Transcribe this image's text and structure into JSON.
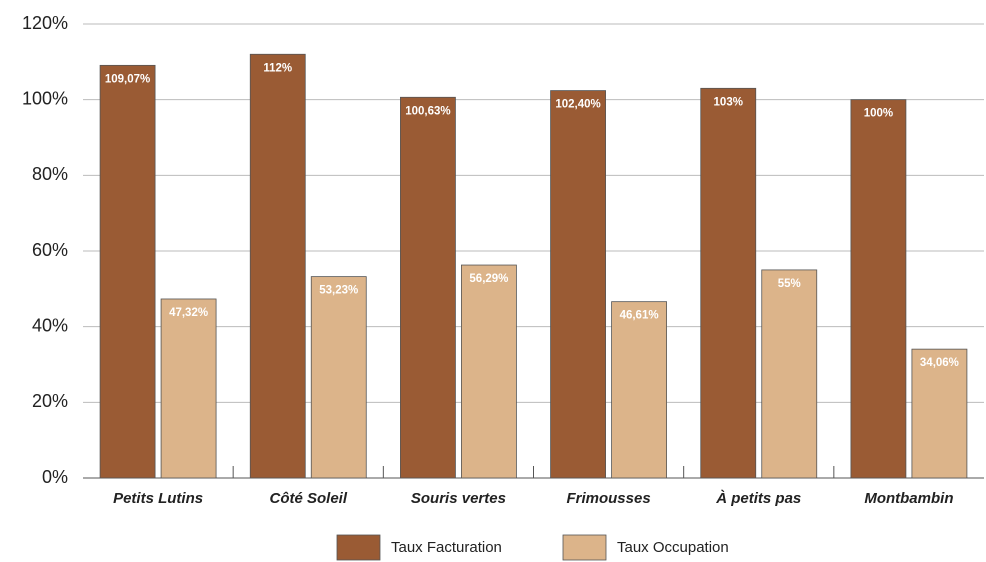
{
  "chart_data": {
    "type": "bar",
    "categories": [
      "Petits Lutins",
      "Côté Soleil",
      "Souris vertes",
      "Frimousses",
      "À petits pas",
      "Montbambin"
    ],
    "series": [
      {
        "name": "Taux Facturation",
        "color": "#9a5b34",
        "values": [
          109.07,
          112,
          100.63,
          102.4,
          103,
          100
        ],
        "value_labels": [
          "109,07%",
          "112%",
          "100,63%",
          "102,40%",
          "103%",
          "100%"
        ]
      },
      {
        "name": "Taux Occupation",
        "color": "#dcb48a",
        "values": [
          47.32,
          53.23,
          56.29,
          46.61,
          55,
          34.06
        ],
        "value_labels": [
          "47,32%",
          "53,23%",
          "56,29%",
          "46,61%",
          "55%",
          "34,06%"
        ]
      }
    ],
    "ylim": [
      0,
      120
    ],
    "yticks": [
      {
        "value": 0,
        "label": "0%"
      },
      {
        "value": 20,
        "label": "20%"
      },
      {
        "value": 40,
        "label": "40%"
      },
      {
        "value": 60,
        "label": "60%"
      },
      {
        "value": 80,
        "label": "80%"
      },
      {
        "value": 100,
        "label": "100%"
      },
      {
        "value": 120,
        "label": "120%"
      }
    ],
    "grid": true,
    "legend": "bottom"
  }
}
